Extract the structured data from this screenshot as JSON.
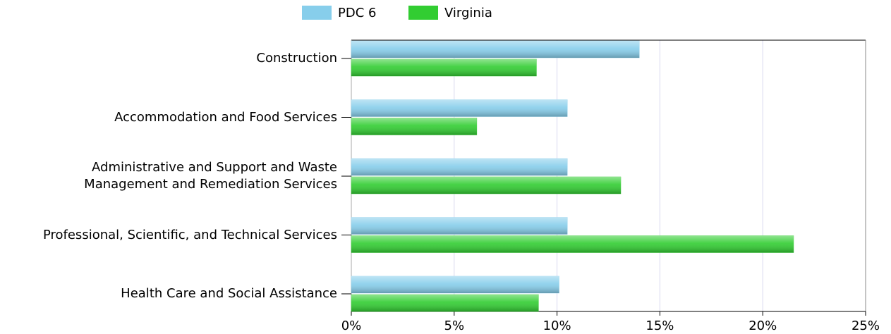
{
  "chart_data": {
    "type": "hbar",
    "categories": [
      "Construction",
      "Accommodation and Food Services",
      "Administrative and Support and Waste Management and Remediation Services",
      "Professional, Scientific, and Technical Services",
      "Health Care and Social Assistance"
    ],
    "series": [
      {
        "name": "PDC 6",
        "color": "#87CEEB",
        "values": [
          14.0,
          10.5,
          10.5,
          10.5,
          10.1
        ]
      },
      {
        "name": "Virginia",
        "color": "#32CD32",
        "values": [
          9.0,
          6.1,
          13.1,
          21.5,
          9.1
        ]
      }
    ],
    "xlim": [
      0,
      25
    ],
    "xticks": [
      {
        "value": 0,
        "label": "0%"
      },
      {
        "value": 5,
        "label": "5%"
      },
      {
        "value": 10,
        "label": "10%"
      },
      {
        "value": 15,
        "label": "15%"
      },
      {
        "value": 20,
        "label": "20%"
      },
      {
        "value": 25,
        "label": "25%"
      }
    ],
    "grid": true,
    "legend": "top"
  }
}
